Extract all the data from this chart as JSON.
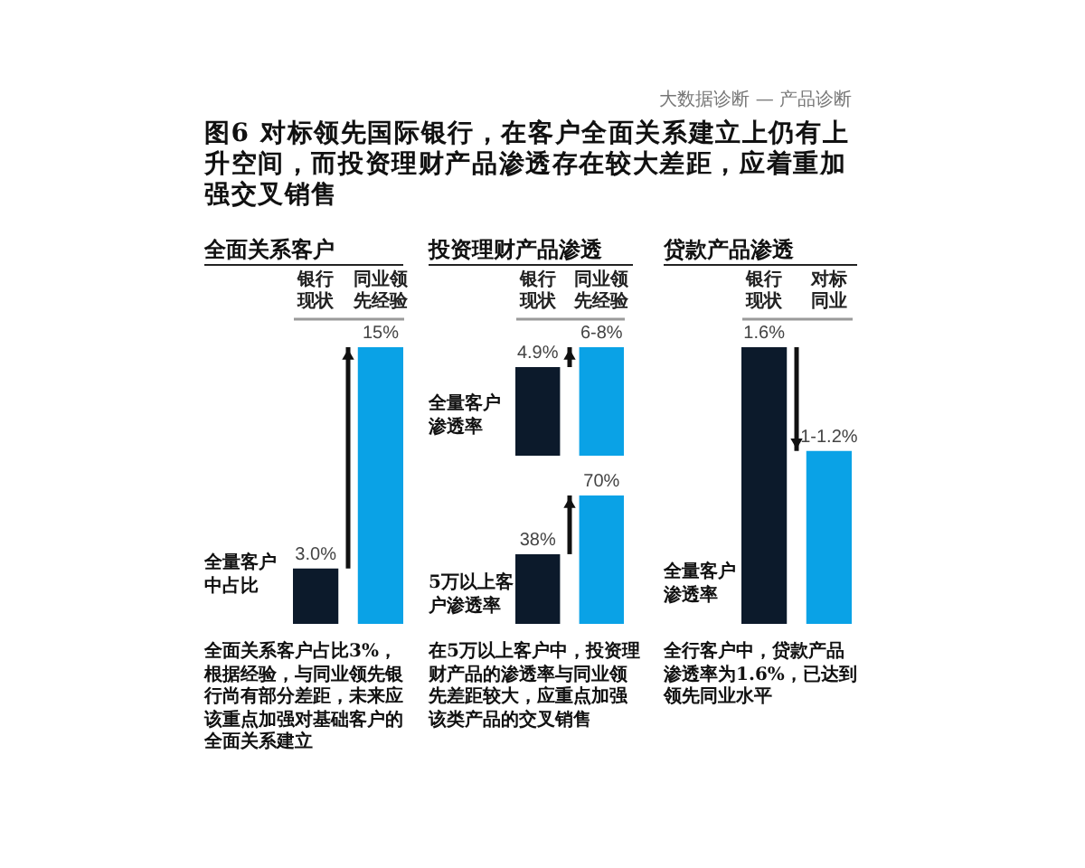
{
  "chart_data": [
    {
      "type": "other",
      "title": "图6 对标领先国际银行，在客户全面关系建立上仍有上升空间，而投资理财产品渗透存在较大差距，应着重加强交叉销售",
      "annotations": [
        "大数据诊断 — 产品诊断"
      ]
    },
    {
      "type": "bar",
      "title": "全面关系客户",
      "categories": [
        "银行现状",
        "同业领先经验"
      ],
      "values": [
        3.0,
        15
      ],
      "value_labels": [
        "3.0%",
        "15%"
      ],
      "colors": [
        "#0c1a2b",
        "#0aa2e6"
      ],
      "ylabel": "全量客户中占比",
      "annotations": [
        "全面关系客户占比3%，根据经验，与同业领先银行尚有部分差距，未来应该重点加强对基础客户的全面关系建立"
      ]
    },
    {
      "type": "bar",
      "title": "投资理财产品渗透",
      "categories": [
        "银行现状",
        "同业领先经验"
      ],
      "values": [
        4.9,
        6
      ],
      "value_labels": [
        "4.9%",
        "6-8%"
      ],
      "colors": [
        "#0c1a2b",
        "#0aa2e6"
      ],
      "ylabel": "全量客户渗透率"
    },
    {
      "type": "bar",
      "categories": [
        "银行现状",
        "同业领先经验"
      ],
      "values": [
        38,
        70
      ],
      "value_labels": [
        "38%",
        "70%"
      ],
      "colors": [
        "#0c1a2b",
        "#0aa2e6"
      ],
      "ylabel": "5万以上客户渗透率",
      "tick_labels": false,
      "annotations": [
        "在5万以上客户中，投资理财产品的渗透率与同业领先差距较大，应重点加强该类产品的交叉销售"
      ]
    },
    {
      "type": "bar",
      "title": "贷款产品渗透",
      "categories": [
        "银行现状",
        "对标同业"
      ],
      "values": [
        1.6,
        1.0
      ],
      "value_labels": [
        "1.6%",
        "1-1.2%"
      ],
      "colors": [
        "#0c1a2b",
        "#0aa2e6"
      ],
      "ylabel": "全量客户渗透率",
      "annotations": [
        "全行客户中，贷款产品渗透率为1.6%，已达到领先同业水平"
      ]
    }
  ]
}
